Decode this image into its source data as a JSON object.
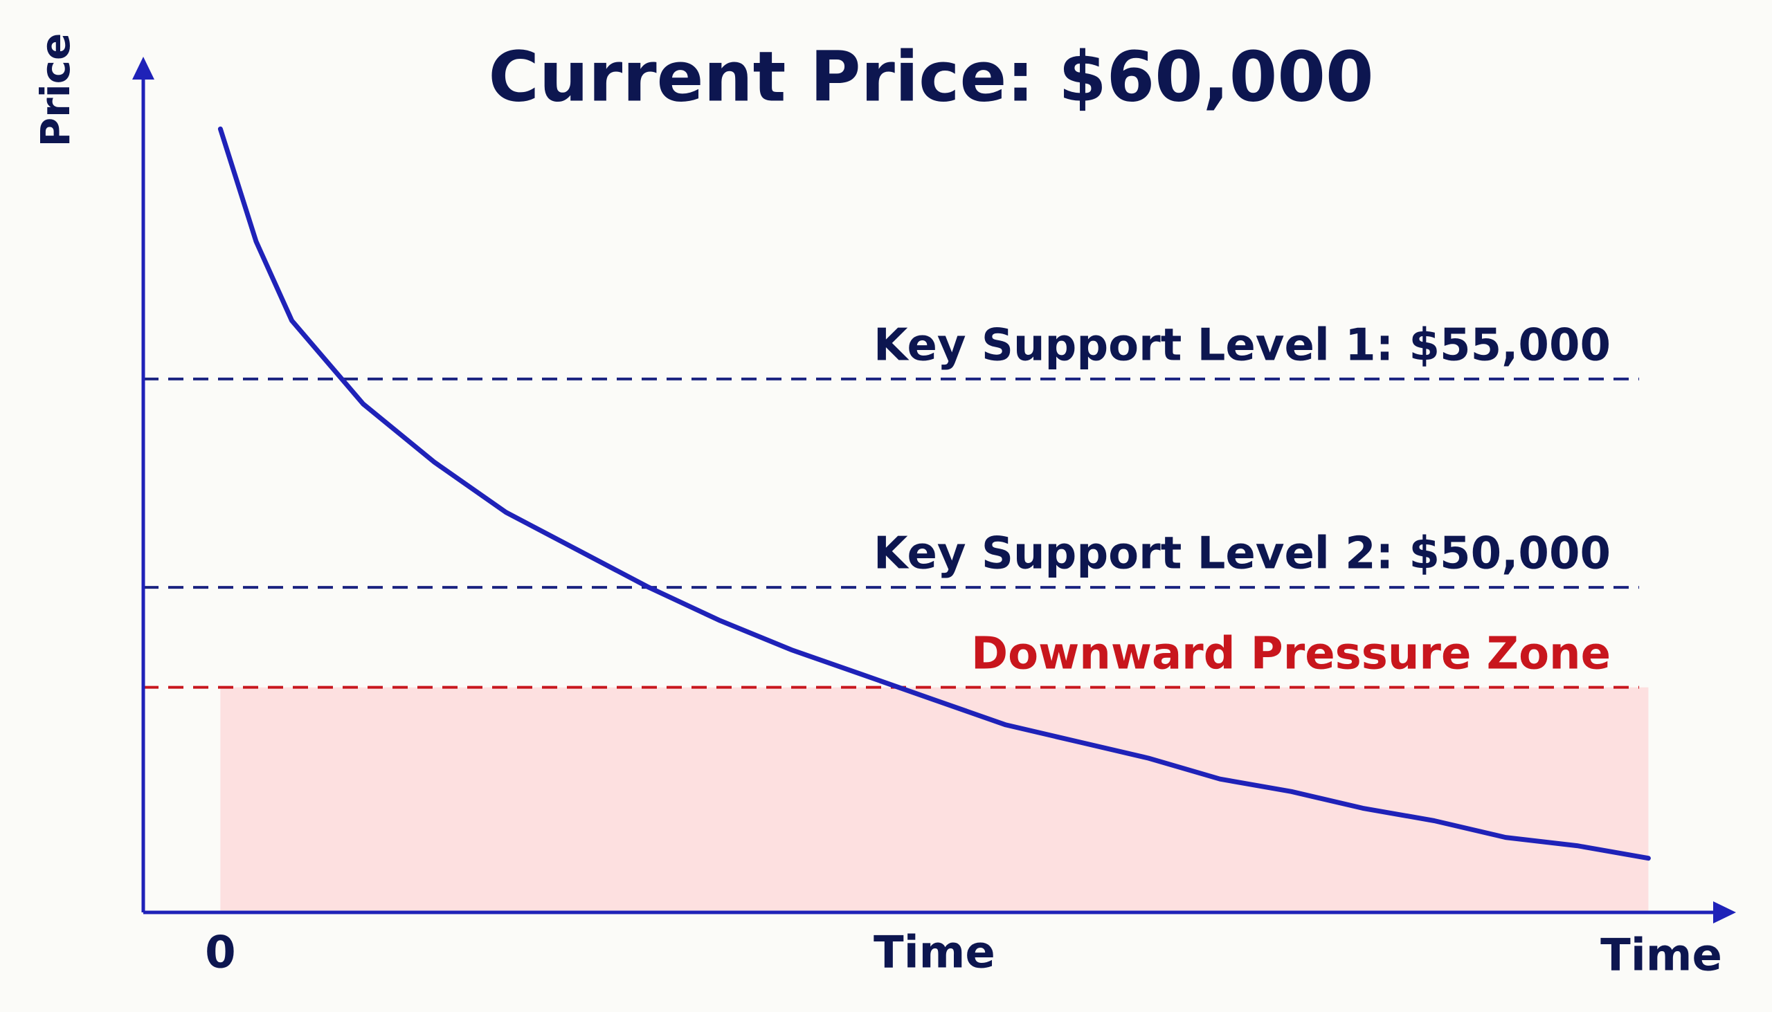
{
  "chart_data": {
    "type": "line",
    "title": "Current Price: $60,000",
    "y_label": "Price",
    "x_label": "Time",
    "x": [
      0,
      2.5,
      5,
      10,
      15,
      20,
      25,
      30,
      35,
      40,
      45,
      50,
      55,
      60,
      65,
      70,
      75,
      80,
      85,
      90,
      95,
      100
    ],
    "values": [
      61000,
      58300,
      56400,
      54400,
      53000,
      51800,
      50900,
      50000,
      49200,
      48500,
      47900,
      47300,
      46700,
      46300,
      45900,
      45400,
      45100,
      44700,
      44400,
      44000,
      43800,
      43500
    ],
    "color": "#1f22b8",
    "xlim": [
      -5.4,
      105.7
    ],
    "xticks": [
      0,
      {
        "value": 50,
        "label": "Time"
      }
    ],
    "ylim": [
      42200,
      62600
    ],
    "support_levels": [
      {
        "label": "Key Support Level 1: $55,000",
        "value": 55000,
        "color": "#1a2380"
      },
      {
        "label": "Key Support Level 2: $50,000",
        "value": 50000,
        "color": "#1a2380"
      }
    ],
    "zone": {
      "label": "Downward Pressure Zone",
      "upper": 47600,
      "start": 0,
      "end": 100,
      "color": "#c8161d",
      "fill": "#fde0e0"
    },
    "axis_color": "#1f22b8",
    "text_color": "#0d1650"
  }
}
